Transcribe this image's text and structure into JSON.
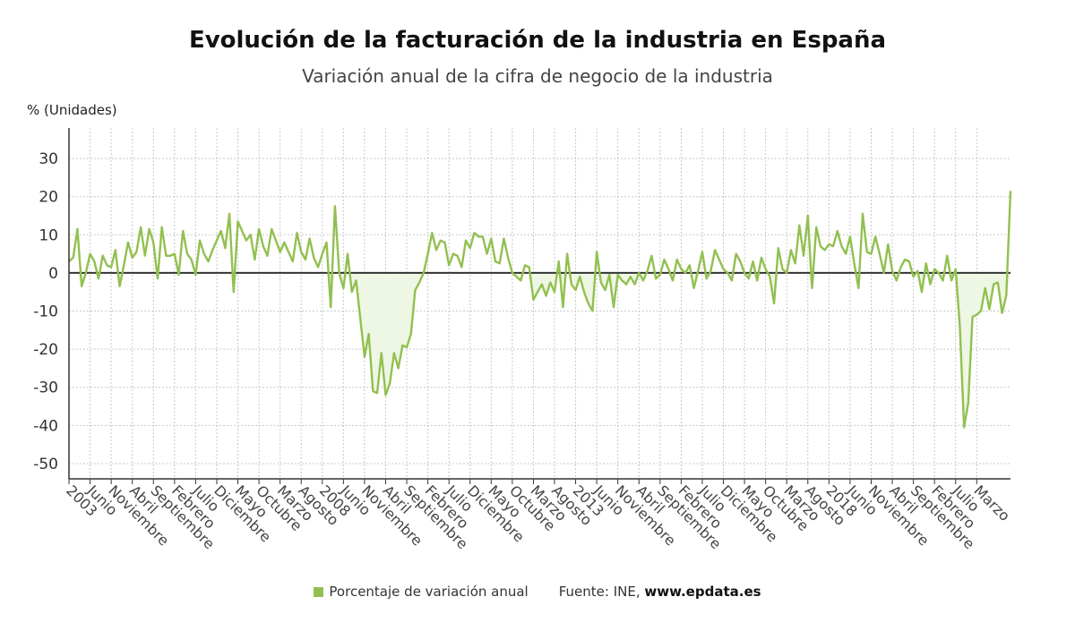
{
  "header": {
    "title": "Evolución de la facturación de la industria en España",
    "subtitle": "Variación anual de la cifra de negocio de la industria"
  },
  "legend": {
    "series_label": "Porcentaje de variación anual",
    "source_prefix": "Fuente: INE,",
    "source_site": "www.epdata.es"
  },
  "colors": {
    "series": "#92c050",
    "fill": "#eef6e4",
    "grid": "#c8c8c8",
    "zero_line": "#333333",
    "axis": "#333333"
  },
  "chart_data": {
    "type": "line",
    "title": "Evolución de la facturación de la industria en España",
    "subtitle": "Variación anual de la cifra de negocio de la industria",
    "ylabel": "% (Unidades)",
    "ylim": [
      -54,
      38
    ],
    "yticks": [
      30,
      20,
      10,
      0,
      -10,
      -20,
      -30,
      -40,
      -50
    ],
    "grid": true,
    "legend_placement": "bottom",
    "start": "2003-01",
    "x_tick_labels": [
      "2003",
      "Junio",
      "Noviembre",
      "Abril",
      "Septiembre",
      "Febrero",
      "Julio",
      "Diciembre",
      "Mayo",
      "Octubre",
      "Marzo",
      "Agosto",
      "2008",
      "Junio",
      "Noviembre",
      "Abril",
      "Septiembre",
      "Febrero",
      "Julio",
      "Diciembre",
      "Mayo",
      "Octubre",
      "Marzo",
      "Agosto",
      "2013",
      "Junio",
      "Noviembre",
      "Abril",
      "Septiembre",
      "Febrero",
      "Julio",
      "Diciembre",
      "Mayo",
      "Octubre",
      "Marzo",
      "Agosto",
      "2018",
      "Junio",
      "Noviembre",
      "Abril",
      "Septiembre",
      "Febrero",
      "Julio",
      "Marzo"
    ],
    "series": [
      {
        "name": "Porcentaje de variación anual",
        "values": [
          3,
          4,
          11.5,
          -3.5,
          0,
          5,
          3,
          -1.5,
          4.5,
          2,
          1.5,
          6,
          -3.5,
          2,
          8,
          4,
          5.5,
          12,
          4.5,
          11.5,
          8,
          -1.5,
          12,
          4.5,
          4.5,
          5,
          -0.5,
          11,
          5,
          3.5,
          -0.5,
          8.5,
          5,
          3,
          6,
          8.5,
          11,
          6.5,
          15.5,
          -5,
          13.5,
          11,
          8.5,
          10,
          3.5,
          11.5,
          7,
          4.5,
          11.5,
          8.5,
          5.5,
          8,
          5.5,
          3,
          10.5,
          5.5,
          3.5,
          9,
          4,
          1.5,
          5,
          8,
          -9,
          17.5,
          0,
          -4,
          5,
          -5,
          -2,
          -12,
          -22,
          -16,
          -31,
          -31.5,
          -21,
          -32,
          -29,
          -21,
          -25,
          -19,
          -19.5,
          -16,
          -4.5,
          -2.5,
          0,
          5,
          10.5,
          6,
          8.5,
          8,
          2,
          5,
          4.5,
          1.5,
          8.5,
          6.5,
          10.5,
          9.5,
          9.5,
          5,
          9,
          3,
          2.5,
          9,
          4,
          0,
          -1,
          -2,
          2,
          1.5,
          -7,
          -5,
          -3,
          -6,
          -2.5,
          -5,
          3,
          -9,
          5,
          -3,
          -4.5,
          -1,
          -5,
          -8,
          -10,
          5.5,
          -2.5,
          -4.5,
          -0.5,
          -9,
          -0.5,
          -2,
          -3,
          -1,
          -3,
          0,
          -2,
          0.5,
          4.5,
          -1.5,
          -0.5,
          3.5,
          1,
          -2,
          3.5,
          1,
          0,
          2,
          -4,
          0.5,
          5.5,
          -1.5,
          0.5,
          6,
          3.5,
          1,
          0,
          -2,
          5,
          3,
          0,
          -1.5,
          3,
          -2,
          4,
          1,
          -1,
          -8,
          6.5,
          1,
          0,
          6,
          2.5,
          12.5,
          4.5,
          15,
          -4,
          12,
          7,
          6,
          7.5,
          7,
          11,
          7,
          5,
          9.5,
          2.5,
          -4,
          15.5,
          5.5,
          5,
          9.5,
          5,
          0,
          7.5,
          0.5,
          -2,
          1.5,
          3.5,
          3,
          -1,
          0.5,
          -5,
          2.5,
          -3,
          1,
          0,
          -2,
          4.5,
          -2,
          1,
          -14,
          -40.5,
          -34,
          -11.5,
          -11,
          -10,
          -4,
          -9.5,
          -3,
          -2.5,
          -10.5,
          -6,
          21.5
        ]
      }
    ]
  }
}
